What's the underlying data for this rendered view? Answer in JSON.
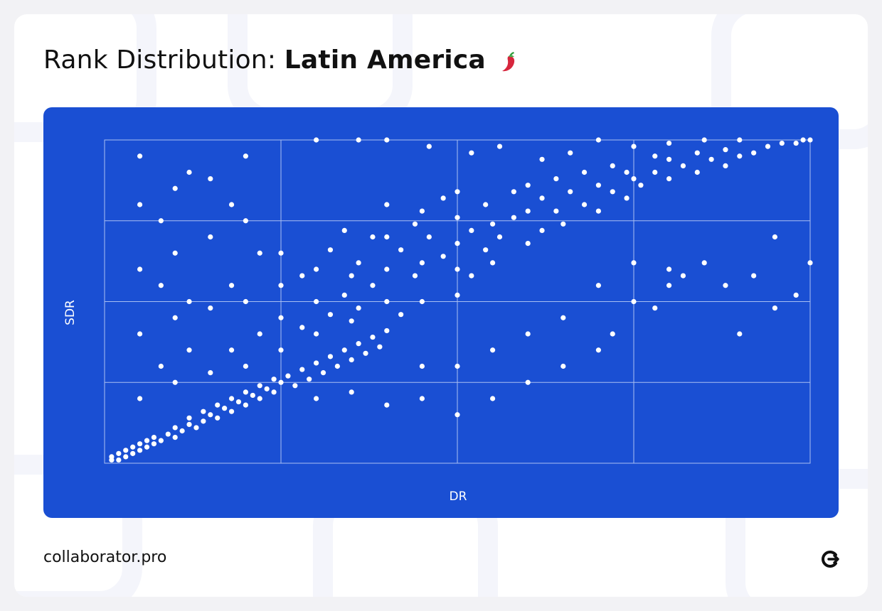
{
  "title": {
    "prefix": "Rank Distribution: ",
    "region": "Latin America"
  },
  "icons": {
    "title_icon": "chili-pepper-icon",
    "brand_icon": "collaborator-logo-icon"
  },
  "footer": {
    "brand": "collaborator.pro"
  },
  "colors": {
    "panel": "#1a4fd3",
    "points": "#ffffff",
    "grid": "#a9bff2"
  },
  "chart_data": {
    "type": "scatter",
    "xlabel": "DR",
    "ylabel": "SDR",
    "title": "",
    "xlim": [
      0,
      100
    ],
    "ylim": [
      0,
      100
    ],
    "grid": true,
    "x_ticks": [
      25,
      50,
      75
    ],
    "y_ticks": [
      25,
      50,
      75
    ],
    "point_summary": "Dense diagonal cloud: thousands of sites; low DR clustered near low SDR, spreading up to high SDR across mid DR, high DR concentrated at high SDR.",
    "series": [
      {
        "name": "",
        "note": "representative sampled points (x = DR, y = SDR)",
        "points": [
          [
            1,
            1
          ],
          [
            1,
            2
          ],
          [
            2,
            1
          ],
          [
            2,
            3
          ],
          [
            3,
            2
          ],
          [
            3,
            4
          ],
          [
            4,
            3
          ],
          [
            4,
            5
          ],
          [
            5,
            4
          ],
          [
            5,
            6
          ],
          [
            6,
            5
          ],
          [
            6,
            7
          ],
          [
            7,
            6
          ],
          [
            7,
            8
          ],
          [
            8,
            7
          ],
          [
            9,
            9
          ],
          [
            10,
            8
          ],
          [
            10,
            11
          ],
          [
            11,
            10
          ],
          [
            12,
            12
          ],
          [
            12,
            14
          ],
          [
            13,
            11
          ],
          [
            14,
            13
          ],
          [
            14,
            16
          ],
          [
            15,
            15
          ],
          [
            16,
            14
          ],
          [
            16,
            18
          ],
          [
            17,
            17
          ],
          [
            18,
            16
          ],
          [
            18,
            20
          ],
          [
            19,
            19
          ],
          [
            20,
            18
          ],
          [
            20,
            22
          ],
          [
            21,
            21
          ],
          [
            22,
            20
          ],
          [
            22,
            24
          ],
          [
            23,
            23
          ],
          [
            24,
            22
          ],
          [
            24,
            26
          ],
          [
            25,
            25
          ],
          [
            26,
            27
          ],
          [
            27,
            24
          ],
          [
            28,
            29
          ],
          [
            29,
            26
          ],
          [
            30,
            31
          ],
          [
            31,
            28
          ],
          [
            32,
            33
          ],
          [
            33,
            30
          ],
          [
            34,
            35
          ],
          [
            35,
            32
          ],
          [
            36,
            37
          ],
          [
            37,
            34
          ],
          [
            38,
            39
          ],
          [
            39,
            36
          ],
          [
            40,
            41
          ],
          [
            25,
            35
          ],
          [
            25,
            45
          ],
          [
            25,
            55
          ],
          [
            25,
            65
          ],
          [
            28,
            42
          ],
          [
            28,
            58
          ],
          [
            30,
            40
          ],
          [
            30,
            50
          ],
          [
            30,
            60
          ],
          [
            32,
            46
          ],
          [
            32,
            66
          ],
          [
            34,
            52
          ],
          [
            34,
            72
          ],
          [
            35,
            44
          ],
          [
            35,
            58
          ],
          [
            36,
            48
          ],
          [
            36,
            62
          ],
          [
            38,
            55
          ],
          [
            38,
            70
          ],
          [
            40,
            50
          ],
          [
            40,
            60
          ],
          [
            40,
            70
          ],
          [
            40,
            80
          ],
          [
            42,
            46
          ],
          [
            42,
            66
          ],
          [
            44,
            58
          ],
          [
            44,
            74
          ],
          [
            45,
            50
          ],
          [
            45,
            62
          ],
          [
            45,
            78
          ],
          [
            46,
            70
          ],
          [
            48,
            64
          ],
          [
            48,
            82
          ],
          [
            50,
            52
          ],
          [
            50,
            60
          ],
          [
            50,
            68
          ],
          [
            50,
            76
          ],
          [
            50,
            84
          ],
          [
            52,
            58
          ],
          [
            52,
            72
          ],
          [
            54,
            66
          ],
          [
            54,
            80
          ],
          [
            55,
            62
          ],
          [
            55,
            74
          ],
          [
            56,
            70
          ],
          [
            58,
            76
          ],
          [
            58,
            84
          ],
          [
            60,
            68
          ],
          [
            60,
            78
          ],
          [
            60,
            86
          ],
          [
            62,
            72
          ],
          [
            62,
            82
          ],
          [
            64,
            78
          ],
          [
            64,
            88
          ],
          [
            65,
            74
          ],
          [
            66,
            84
          ],
          [
            68,
            80
          ],
          [
            68,
            90
          ],
          [
            70,
            78
          ],
          [
            70,
            86
          ],
          [
            72,
            84
          ],
          [
            72,
            92
          ],
          [
            74,
            82
          ],
          [
            74,
            90
          ],
          [
            75,
            88
          ],
          [
            76,
            86
          ],
          [
            78,
            90
          ],
          [
            78,
            95
          ],
          [
            80,
            88
          ],
          [
            80,
            94
          ],
          [
            82,
            92
          ],
          [
            84,
            90
          ],
          [
            84,
            96
          ],
          [
            86,
            94
          ],
          [
            88,
            92
          ],
          [
            88,
            97
          ],
          [
            90,
            95
          ],
          [
            92,
            96
          ],
          [
            94,
            98
          ],
          [
            96,
            99
          ],
          [
            98,
            99
          ],
          [
            99,
            100
          ],
          [
            100,
            100
          ],
          [
            5,
            20
          ],
          [
            5,
            40
          ],
          [
            5,
            60
          ],
          [
            5,
            80
          ],
          [
            5,
            95
          ],
          [
            8,
            30
          ],
          [
            8,
            55
          ],
          [
            8,
            75
          ],
          [
            10,
            25
          ],
          [
            10,
            45
          ],
          [
            10,
            65
          ],
          [
            10,
            85
          ],
          [
            12,
            35
          ],
          [
            12,
            50
          ],
          [
            12,
            90
          ],
          [
            15,
            28
          ],
          [
            15,
            48
          ],
          [
            15,
            70
          ],
          [
            15,
            88
          ],
          [
            18,
            35
          ],
          [
            18,
            55
          ],
          [
            18,
            80
          ],
          [
            20,
            30
          ],
          [
            20,
            50
          ],
          [
            20,
            75
          ],
          [
            20,
            95
          ],
          [
            22,
            40
          ],
          [
            22,
            65
          ],
          [
            30,
            20
          ],
          [
            35,
            22
          ],
          [
            40,
            18
          ],
          [
            45,
            20
          ],
          [
            45,
            30
          ],
          [
            50,
            15
          ],
          [
            50,
            30
          ],
          [
            55,
            20
          ],
          [
            55,
            35
          ],
          [
            60,
            25
          ],
          [
            60,
            40
          ],
          [
            65,
            30
          ],
          [
            65,
            45
          ],
          [
            70,
            35
          ],
          [
            70,
            55
          ],
          [
            72,
            40
          ],
          [
            75,
            50
          ],
          [
            75,
            62
          ],
          [
            78,
            48
          ],
          [
            80,
            55
          ],
          [
            80,
            60
          ],
          [
            82,
            58
          ],
          [
            85,
            62
          ],
          [
            88,
            55
          ],
          [
            90,
            40
          ],
          [
            92,
            58
          ],
          [
            95,
            48
          ],
          [
            95,
            70
          ],
          [
            98,
            52
          ],
          [
            100,
            62
          ],
          [
            30,
            100
          ],
          [
            36,
            100
          ],
          [
            40,
            100
          ],
          [
            46,
            98
          ],
          [
            52,
            96
          ],
          [
            56,
            98
          ],
          [
            62,
            94
          ],
          [
            66,
            96
          ],
          [
            70,
            100
          ],
          [
            75,
            98
          ],
          [
            80,
            99
          ],
          [
            85,
            100
          ],
          [
            90,
            100
          ]
        ]
      }
    ]
  }
}
